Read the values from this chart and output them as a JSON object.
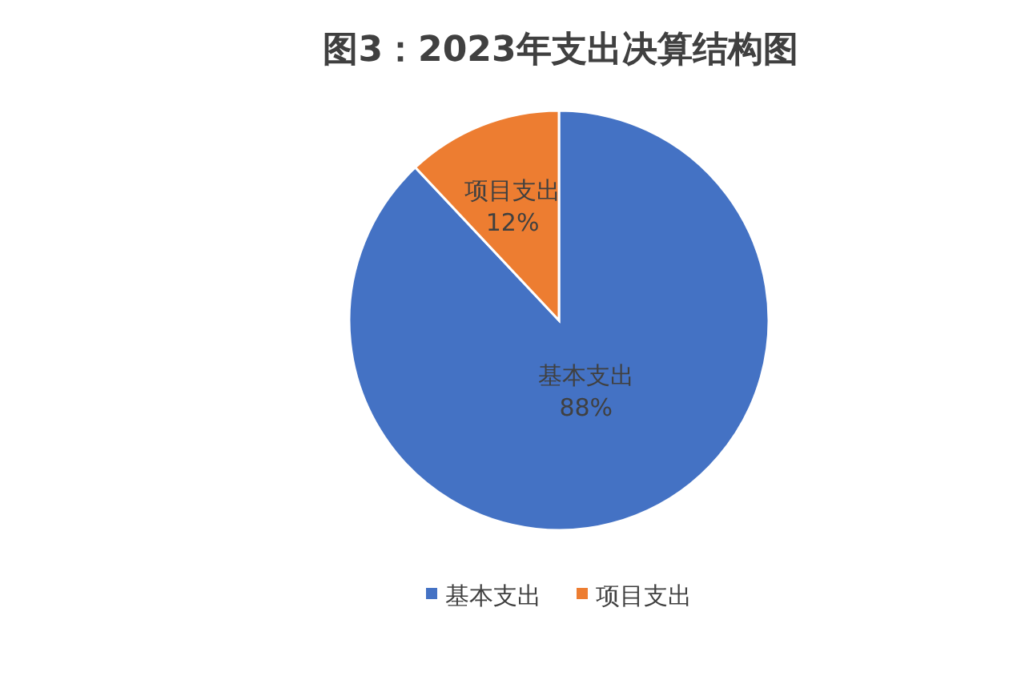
{
  "chart_data": {
    "type": "pie",
    "title": "图3：2023年支出决算结构图",
    "categories": [
      "基本支出",
      "项目支出"
    ],
    "values": [
      88,
      12
    ],
    "colors": [
      "#4472c4",
      "#ed7d31"
    ],
    "value_labels": [
      "88%",
      "12%"
    ],
    "legend": "bottom"
  }
}
